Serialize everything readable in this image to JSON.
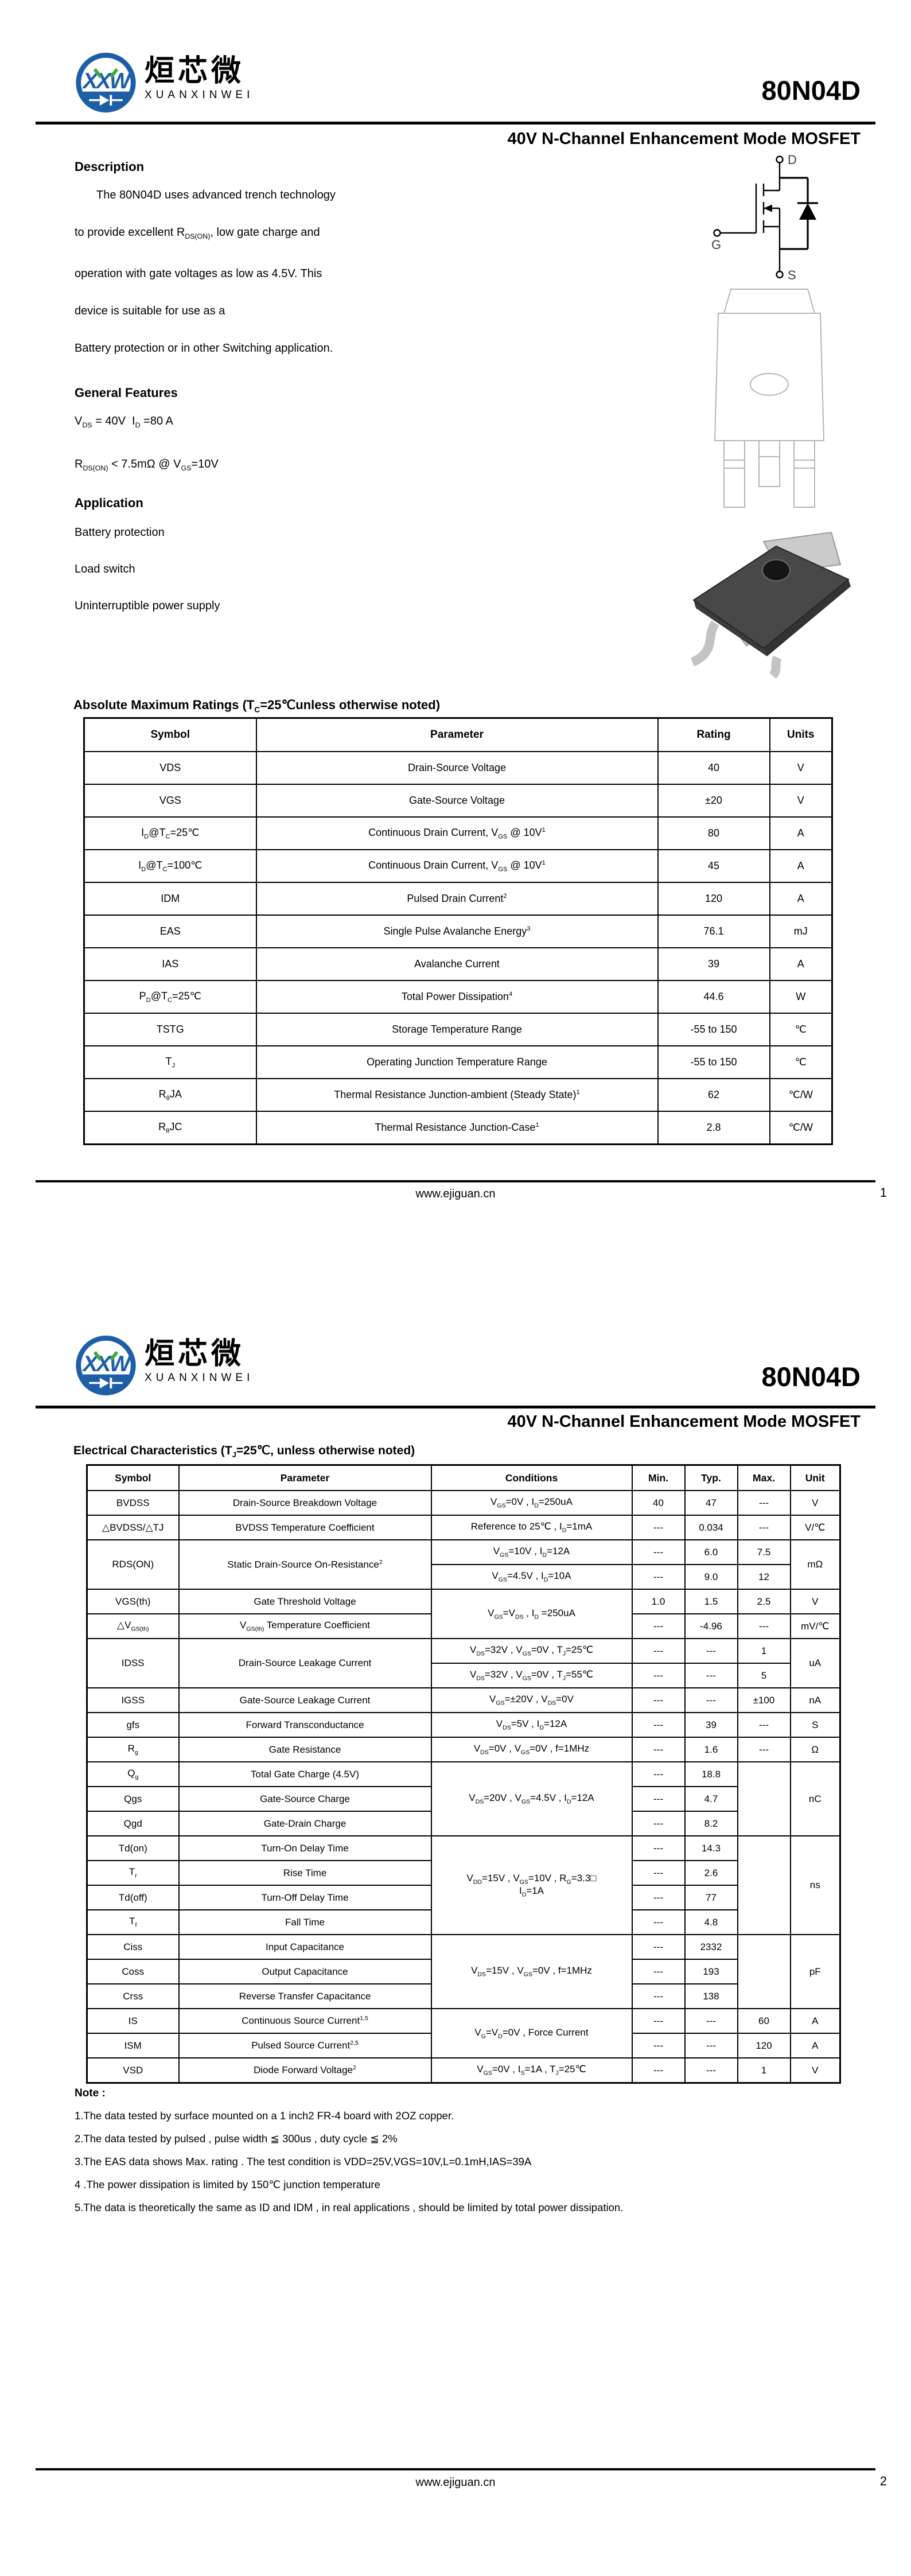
{
  "brand": {
    "logo_monogram": "XXW",
    "chinese": "烜芯微",
    "english": "XUANXINWEI"
  },
  "part_number": "80N04D",
  "subtitle": "40V N-Channel Enhancement Mode MOSFET",
  "mosfet_symbol": {
    "drain": "D",
    "gate": "G",
    "source": "S"
  },
  "footer": {
    "url": "www.ejiguan.cn",
    "page1": "1",
    "page2": "2"
  },
  "page1": {
    "description": {
      "heading": "Description",
      "lines": [
        "The 80N04D uses advanced trench technology",
        "to provide excellent R<sub>DS(ON)</sub>, low gate charge and",
        "operation with gate voltages as low as 4.5V. This",
        "device is suitable for use as a",
        "Battery protection or in other Switching application."
      ]
    },
    "general_features": {
      "heading": "General Features",
      "items": [
        "V<sub>DS</sub> = 40V&nbsp; I<sub>D</sub> =80 A",
        "R<sub>DS(ON)</sub> &lt; 7.5mΩ @ V<sub>GS</sub>=10V"
      ]
    },
    "application": {
      "heading": "Application",
      "items": [
        "Battery protection",
        "Load switch",
        "Uninterruptible power supply"
      ]
    },
    "abs_max": {
      "heading_html": "Absolute Maximum Ratings (T<sub>C</sub>=25℃unless otherwise noted)",
      "headers": [
        "Symbol",
        "Parameter",
        "Rating",
        "Units"
      ],
      "rows": [
        [
          {
            "h": "VDS"
          },
          {
            "h": "Drain-Source Voltage"
          },
          {
            "h": "40"
          },
          {
            "h": "V"
          }
        ],
        [
          {
            "h": "VGS"
          },
          {
            "h": "Gate-Source Voltage"
          },
          {
            "h": "±20"
          },
          {
            "h": "V"
          }
        ],
        [
          {
            "h": "I<sub>D</sub>@T<sub>C</sub>=25℃"
          },
          {
            "h": "Continuous Drain Current, V<sub>GS</sub> @ 10V<sup>1</sup>"
          },
          {
            "h": "80"
          },
          {
            "h": "A"
          }
        ],
        [
          {
            "h": "I<sub>D</sub>@T<sub>C</sub>=100℃"
          },
          {
            "h": "Continuous Drain Current, V<sub>GS</sub> @ 10V<sup>1</sup>"
          },
          {
            "h": "45"
          },
          {
            "h": "A"
          }
        ],
        [
          {
            "h": "IDM"
          },
          {
            "h": "Pulsed Drain Current<sup>2</sup>"
          },
          {
            "h": "120"
          },
          {
            "h": "A"
          }
        ],
        [
          {
            "h": "EAS"
          },
          {
            "h": "Single Pulse Avalanche Energy<sup>3</sup>"
          },
          {
            "h": "76.1"
          },
          {
            "h": "mJ"
          }
        ],
        [
          {
            "h": "IAS"
          },
          {
            "h": "Avalanche Current"
          },
          {
            "h": "39"
          },
          {
            "h": "A"
          }
        ],
        [
          {
            "h": "P<sub>D</sub>@T<sub>C</sub>=25℃"
          },
          {
            "h": "Total Power Dissipation<sup>4</sup>"
          },
          {
            "h": "44.6"
          },
          {
            "h": "W"
          }
        ],
        [
          {
            "h": "TSTG"
          },
          {
            "h": "Storage Temperature Range"
          },
          {
            "h": "-55 to 150"
          },
          {
            "h": "℃"
          }
        ],
        [
          {
            "h": "T<sub>J</sub>"
          },
          {
            "h": "Operating Junction Temperature Range"
          },
          {
            "h": "-55 to 150"
          },
          {
            "h": "℃"
          }
        ],
        [
          {
            "h": "R<sub>θ</sub>JA"
          },
          {
            "h": "Thermal Resistance Junction-ambient (Steady State)<sup>1</sup>"
          },
          {
            "h": "62"
          },
          {
            "h": "℃/W"
          }
        ],
        [
          {
            "h": "R<sub>θ</sub>JC"
          },
          {
            "h": "Thermal Resistance Junction-Case<sup>1</sup>"
          },
          {
            "h": "2.8"
          },
          {
            "h": "℃/W"
          }
        ]
      ]
    }
  },
  "page2": {
    "elec": {
      "heading_html": "Electrical Characteristics (T<sub>J</sub>=25℃, unless otherwise noted)",
      "headers": [
        "Symbol",
        "Parameter",
        "Conditions",
        "Min.",
        "Typ.",
        "Max.",
        "Unit"
      ],
      "rows": [
        [
          {
            "h": "BVDSS"
          },
          {
            "h": "Drain-Source Breakdown Voltage"
          },
          {
            "h": "V<sub>GS</sub>=0V , I<sub>D</sub>=250uA"
          },
          {
            "h": "40"
          },
          {
            "h": "47"
          },
          {
            "h": "---"
          },
          {
            "h": "V"
          }
        ],
        [
          {
            "h": "△BVDSS/△TJ"
          },
          {
            "h": "BVDSS Temperature Coefficient"
          },
          {
            "h": "Reference to 25℃ , I<sub>D</sub>=1mA"
          },
          {
            "h": "---"
          },
          {
            "h": "0.034"
          },
          {
            "h": "---"
          },
          {
            "h": "V/℃"
          }
        ],
        [
          {
            "h": "RDS(ON)",
            "rs": 2
          },
          {
            "h": "Static Drain-Source On-Resistance<sup>2</sup>",
            "rs": 2
          },
          {
            "h": "V<sub>GS</sub>=10V , I<sub>D</sub>=12A"
          },
          {
            "h": "---"
          },
          {
            "h": "6.0"
          },
          {
            "h": "7.5"
          },
          {
            "h": "mΩ",
            "rs": 2
          }
        ],
        [
          {
            "h": "V<sub>GS</sub>=4.5V , I<sub>D</sub>=10A"
          },
          {
            "h": "---"
          },
          {
            "h": "9.0"
          },
          {
            "h": "12"
          }
        ],
        [
          {
            "h": "VGS(th)"
          },
          {
            "h": "Gate Threshold Voltage"
          },
          {
            "h": "V<sub>GS</sub>=V<sub>DS</sub> , I<sub>D</sub> =250uA",
            "rs": 2
          },
          {
            "h": "1.0"
          },
          {
            "h": "1.5"
          },
          {
            "h": "2.5"
          },
          {
            "h": "V"
          }
        ],
        [
          {
            "h": "△V<sub>GS(th)</sub>"
          },
          {
            "h": "V<sub>GS(th)</sub> Temperature Coefficient"
          },
          {
            "h": "---"
          },
          {
            "h": "-4.96"
          },
          {
            "h": "---"
          },
          {
            "h": "mV/℃"
          }
        ],
        [
          {
            "h": "IDSS",
            "rs": 2
          },
          {
            "h": "Drain-Source Leakage Current",
            "rs": 2
          },
          {
            "h": "V<sub>DS</sub>=32V , V<sub>GS</sub>=0V , T<sub>J</sub>=25℃"
          },
          {
            "h": "---"
          },
          {
            "h": "---"
          },
          {
            "h": "1"
          },
          {
            "h": "uA",
            "rs": 2
          }
        ],
        [
          {
            "h": "V<sub>DS</sub>=32V , V<sub>GS</sub>=0V , T<sub>J</sub>=55℃"
          },
          {
            "h": "---"
          },
          {
            "h": "---"
          },
          {
            "h": "5"
          }
        ],
        [
          {
            "h": "IGSS"
          },
          {
            "h": "Gate-Source Leakage Current"
          },
          {
            "h": "V<sub>GS</sub>=±20V , V<sub>DS</sub>=0V"
          },
          {
            "h": "---"
          },
          {
            "h": "---"
          },
          {
            "h": "±100"
          },
          {
            "h": "nA"
          }
        ],
        [
          {
            "h": "gfs"
          },
          {
            "h": "Forward Transconductance"
          },
          {
            "h": "V<sub>DS</sub>=5V , I<sub>D</sub>=12A"
          },
          {
            "h": "---"
          },
          {
            "h": "39"
          },
          {
            "h": "---"
          },
          {
            "h": "S"
          }
        ],
        [
          {
            "h": "R<sub>g</sub>"
          },
          {
            "h": "Gate Resistance"
          },
          {
            "h": "V<sub>DS</sub>=0V , V<sub>GS</sub>=0V , f=1MHz"
          },
          {
            "h": "---"
          },
          {
            "h": "1.6"
          },
          {
            "h": "---"
          },
          {
            "h": "Ω"
          }
        ],
        [
          {
            "h": "Q<sub>g</sub>"
          },
          {
            "h": "Total Gate Charge (4.5V)"
          },
          {
            "h": "V<sub>DS</sub>=20V , V<sub>GS</sub>=4.5V , I<sub>D</sub>=12A",
            "rs": 3
          },
          {
            "h": "---"
          },
          {
            "h": "18.8"
          },
          {
            "h": "",
            "rs": 3
          },
          {
            "h": "nC",
            "rs": 3
          }
        ],
        [
          {
            "h": "Qgs"
          },
          {
            "h": "Gate-Source Charge"
          },
          {
            "h": "---"
          },
          {
            "h": "4.7"
          }
        ],
        [
          {
            "h": "Qgd"
          },
          {
            "h": "Gate-Drain Charge"
          },
          {
            "h": "---"
          },
          {
            "h": "8.2"
          }
        ],
        [
          {
            "h": "Td(on)"
          },
          {
            "h": "Turn-On Delay Time"
          },
          {
            "h": "V<sub>DD</sub>=15V , V<sub>GS</sub>=10V , R<sub>G</sub>=3.3□<br>I<sub>D</sub>=1A",
            "rs": 4
          },
          {
            "h": "---"
          },
          {
            "h": "14.3"
          },
          {
            "h": "",
            "rs": 4
          },
          {
            "h": "ns",
            "rs": 4
          }
        ],
        [
          {
            "h": "T<sub>r</sub>"
          },
          {
            "h": "Rise Time"
          },
          {
            "h": "---"
          },
          {
            "h": "2.6"
          }
        ],
        [
          {
            "h": "Td(off)"
          },
          {
            "h": "Turn-Off Delay Time"
          },
          {
            "h": "---"
          },
          {
            "h": "77"
          }
        ],
        [
          {
            "h": "T<sub>f</sub>"
          },
          {
            "h": "Fall Time"
          },
          {
            "h": "---"
          },
          {
            "h": "4.8"
          }
        ],
        [
          {
            "h": "Ciss"
          },
          {
            "h": "Input Capacitance"
          },
          {
            "h": "V<sub>DS</sub>=15V , V<sub>GS</sub>=0V , f=1MHz",
            "rs": 3
          },
          {
            "h": "---"
          },
          {
            "h": "2332"
          },
          {
            "h": "",
            "rs": 3
          },
          {
            "h": "pF",
            "rs": 3
          }
        ],
        [
          {
            "h": "Coss"
          },
          {
            "h": "Output Capacitance"
          },
          {
            "h": "---"
          },
          {
            "h": "193"
          }
        ],
        [
          {
            "h": "Crss"
          },
          {
            "h": "Reverse Transfer Capacitance"
          },
          {
            "h": "---"
          },
          {
            "h": "138"
          }
        ],
        [
          {
            "h": "IS"
          },
          {
            "h": "Continuous Source Current<sup>1,5</sup>"
          },
          {
            "h": "V<sub>G</sub>=V<sub>D</sub>=0V , Force Current",
            "rs": 2
          },
          {
            "h": "---"
          },
          {
            "h": "---"
          },
          {
            "h": "60"
          },
          {
            "h": "A"
          }
        ],
        [
          {
            "h": "ISM"
          },
          {
            "h": "Pulsed Source Current<sup>2,5</sup>"
          },
          {
            "h": "---"
          },
          {
            "h": "---"
          },
          {
            "h": "120"
          },
          {
            "h": "A"
          }
        ],
        [
          {
            "h": "VSD"
          },
          {
            "h": "Diode Forward Voltage<sup>2</sup>"
          },
          {
            "h": "V<sub>GS</sub>=0V , I<sub>S</sub>=1A , T<sub>J</sub>=25℃"
          },
          {
            "h": "---"
          },
          {
            "h": "---"
          },
          {
            "h": "1"
          },
          {
            "h": "V"
          }
        ]
      ]
    },
    "notes": {
      "heading": "Note :",
      "items": [
        "1.The data tested by surface mounted on a 1 inch2 FR-4 board with 2OZ copper.",
        "2.The data tested by pulsed , pulse width ≦ 300us , duty cycle ≦ 2%",
        "3.The EAS data shows Max. rating . The test condition is VDD=25V,VGS=10V,L=0.1mH,IAS=39A",
        "4 .The power dissipation is limited by 150℃ junction temperature",
        "5.The data is theoretically the same as ID and IDM , in real applications , should be limited by total power dissipation."
      ]
    }
  }
}
